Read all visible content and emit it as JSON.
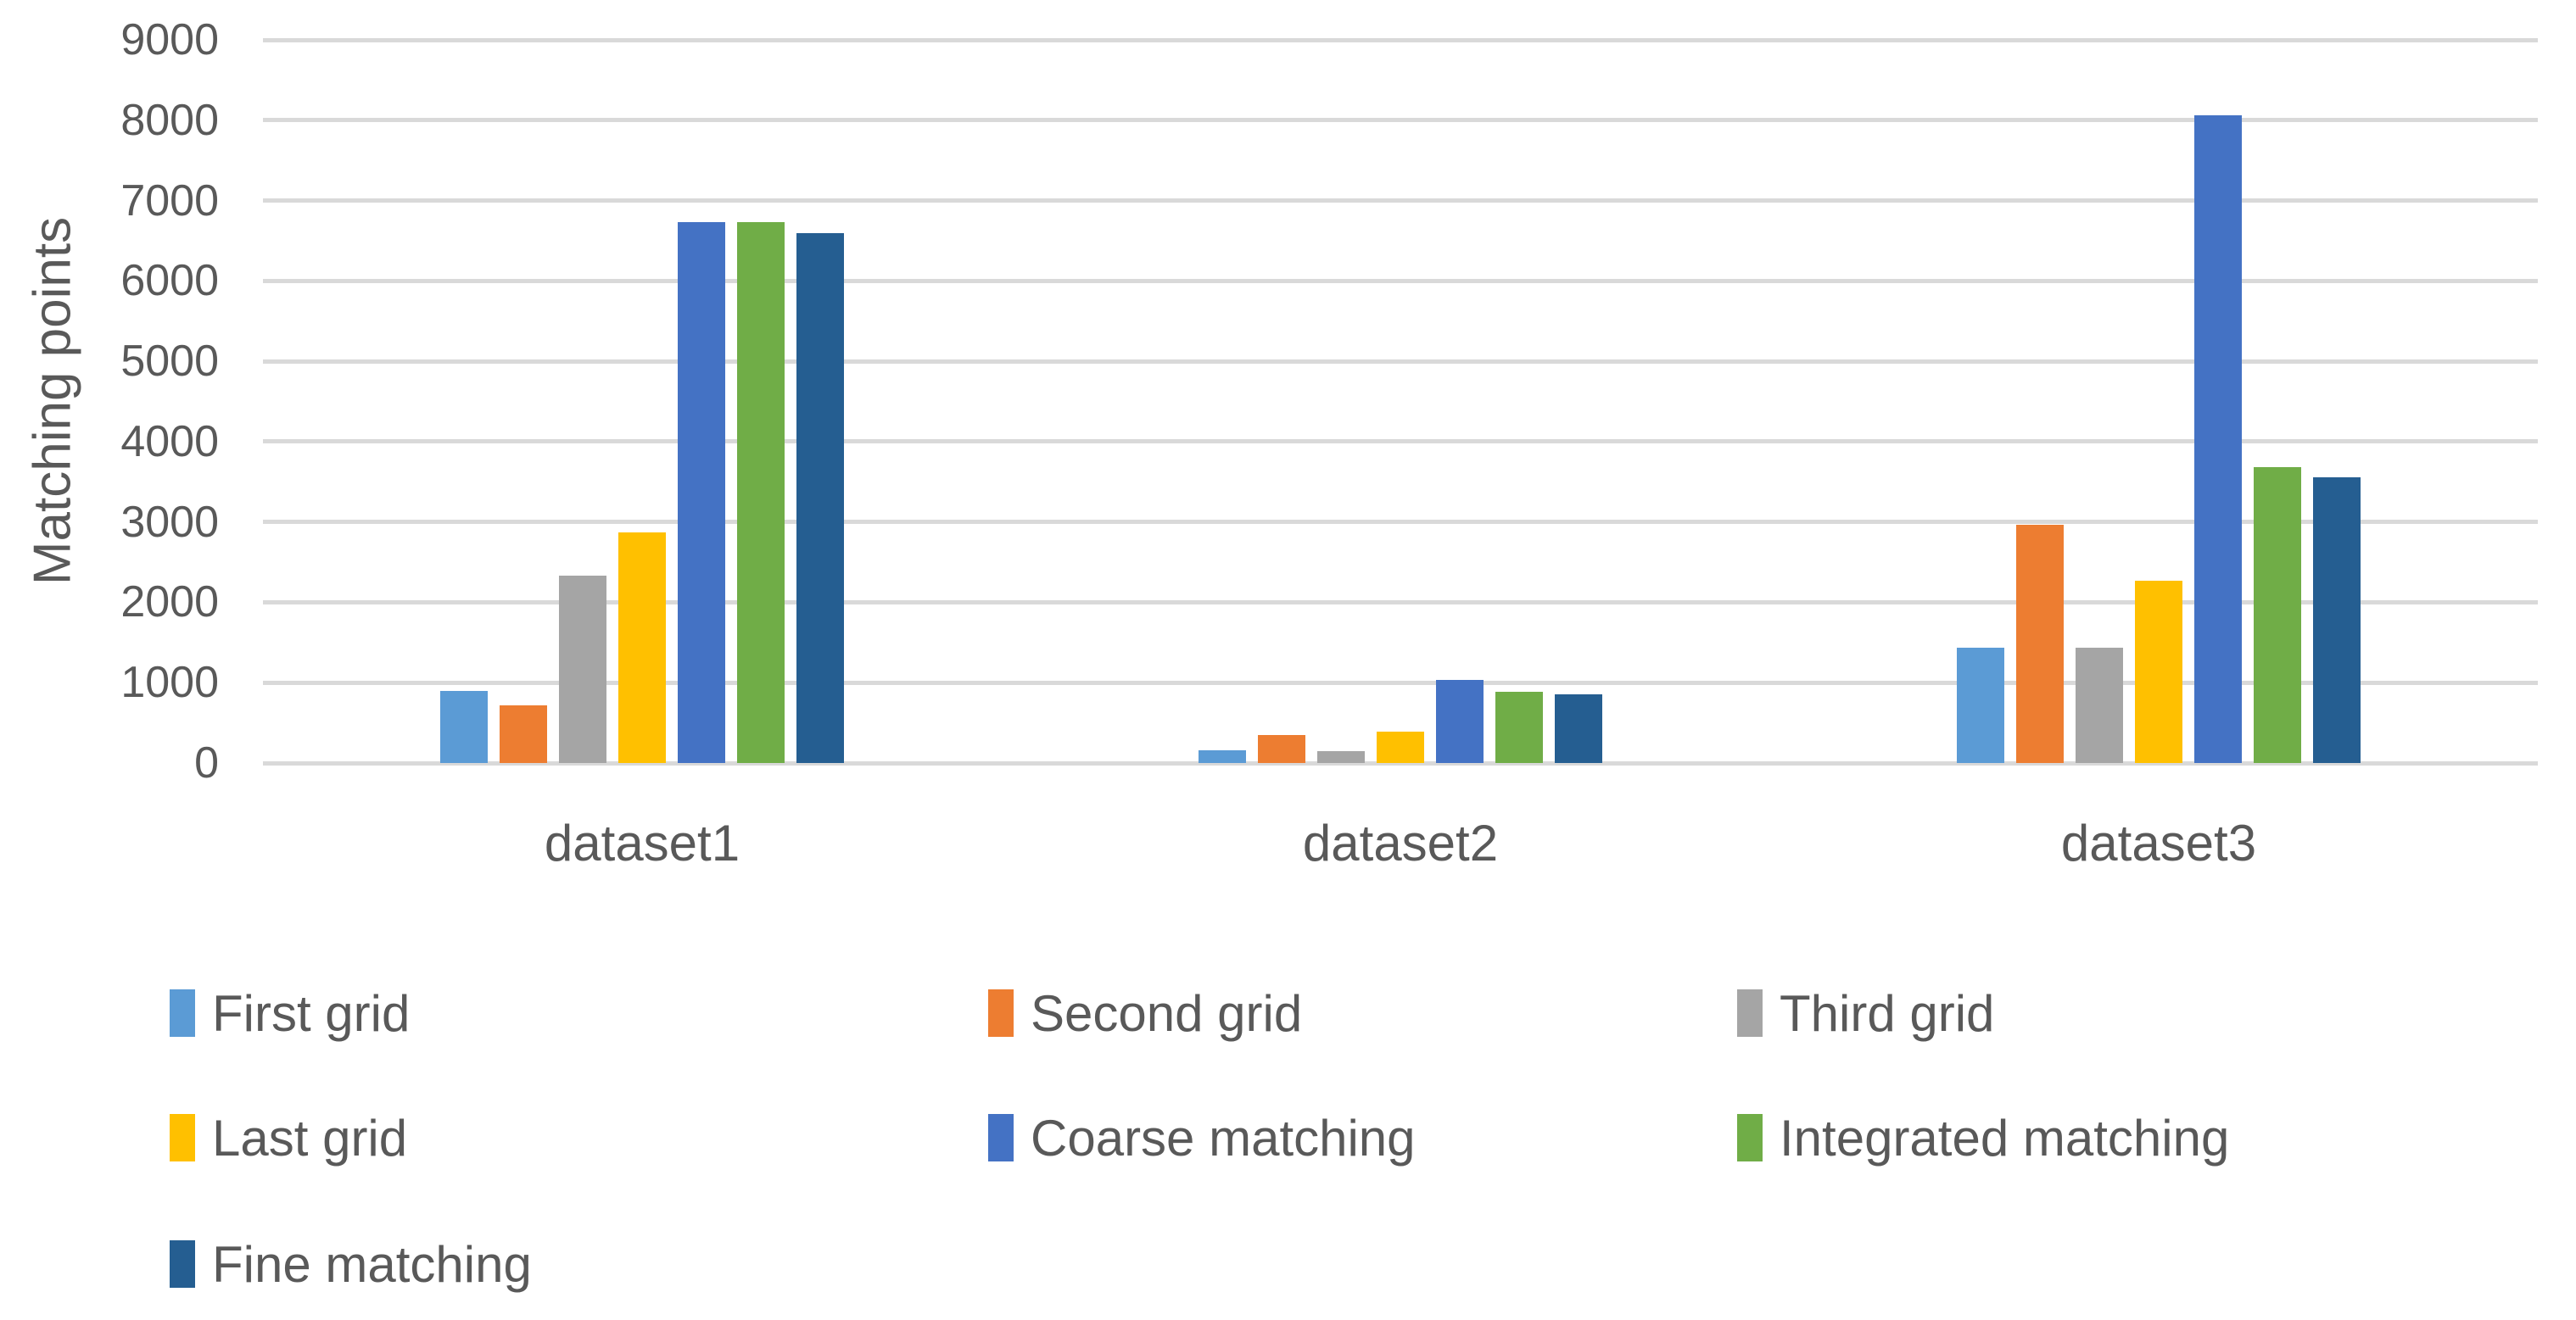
{
  "chart_data": {
    "type": "bar",
    "title": "",
    "ylabel": "Matching points",
    "xlabel": "",
    "categories": [
      "dataset1",
      "dataset2",
      "dataset3"
    ],
    "series": [
      {
        "name": "First grid",
        "color": "#5B9BD5",
        "values": [
          900,
          160,
          1440
        ]
      },
      {
        "name": "Second grid",
        "color": "#ED7D31",
        "values": [
          720,
          350,
          2960
        ]
      },
      {
        "name": "Third grid",
        "color": "#A5A5A5",
        "values": [
          2330,
          150,
          1440
        ]
      },
      {
        "name": "Last grid",
        "color": "#FFC000",
        "values": [
          2870,
          390,
          2270
        ]
      },
      {
        "name": "Coarse matching",
        "color": "#4472C4",
        "values": [
          6730,
          1030,
          8060
        ]
      },
      {
        "name": "Integrated matching",
        "color": "#70AD47",
        "values": [
          6730,
          890,
          3680
        ]
      },
      {
        "name": "Fine matching",
        "color": "#255E91",
        "values": [
          6590,
          860,
          3560
        ]
      }
    ],
    "ylim": [
      0,
      9000
    ],
    "yticks": [
      0,
      1000,
      2000,
      3000,
      4000,
      5000,
      6000,
      7000,
      8000,
      9000
    ],
    "grid": true,
    "gridline_color": "#D9D9D9",
    "text_color": "#595959",
    "legend_position": "bottom",
    "legend_columns": 3
  }
}
